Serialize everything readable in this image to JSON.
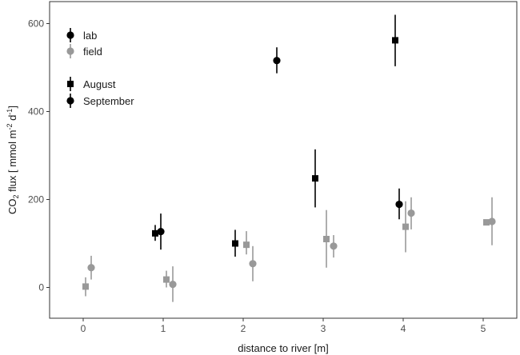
{
  "chart_data": {
    "type": "scatter",
    "xlabel": "distance to river [m]",
    "ylabel_parts": {
      "a": "CO",
      "b": "2",
      "c": " flux [ mmol m",
      "d": "-2",
      "e": " d",
      "f": "-1",
      "g": "]"
    },
    "xlim": [
      -0.42,
      5.42
    ],
    "ylim": [
      -70,
      650
    ],
    "x_ticks": [
      0,
      1,
      2,
      3,
      4,
      5
    ],
    "y_ticks": [
      0,
      200,
      400,
      600
    ],
    "grid": false,
    "legend_position": "top-left",
    "legend": {
      "color_entries": [
        {
          "label": "lab",
          "color": "#000000"
        },
        {
          "label": "field",
          "color": "#999999"
        }
      ],
      "shape_entries": [
        {
          "label": "August",
          "shape": "square"
        },
        {
          "label": "September",
          "shape": "circle"
        }
      ]
    },
    "series": [
      {
        "source": "lab",
        "month": "August",
        "shape": "square",
        "color": "#000000",
        "points": [
          {
            "x": 0.9,
            "y": 123,
            "low": 106,
            "high": 142
          },
          {
            "x": 1.9,
            "y": 100,
            "low": 70,
            "high": 131
          },
          {
            "x": 2.9,
            "y": 248,
            "low": 182,
            "high": 314
          },
          {
            "x": 3.9,
            "y": 562,
            "low": 503,
            "high": 620
          }
        ]
      },
      {
        "source": "lab",
        "month": "September",
        "shape": "circle",
        "color": "#000000",
        "points": [
          {
            "x": 0.97,
            "y": 127,
            "low": 86,
            "high": 168
          },
          {
            "x": 2.42,
            "y": 516,
            "low": 487,
            "high": 546
          },
          {
            "x": 3.95,
            "y": 189,
            "low": 155,
            "high": 225
          }
        ]
      },
      {
        "source": "field",
        "month": "August",
        "shape": "square",
        "color": "#999999",
        "points": [
          {
            "x": 0.03,
            "y": 2,
            "low": -20,
            "high": 23
          },
          {
            "x": 1.04,
            "y": 18,
            "low": 0,
            "high": 38
          },
          {
            "x": 2.04,
            "y": 97,
            "low": 75,
            "high": 128
          },
          {
            "x": 3.04,
            "y": 110,
            "low": 45,
            "high": 176
          },
          {
            "x": 4.03,
            "y": 138,
            "low": 80,
            "high": 196
          },
          {
            "x": 5.04,
            "y": 148,
            "low": 148,
            "high": 148
          }
        ]
      },
      {
        "source": "field",
        "month": "September",
        "shape": "circle",
        "color": "#999999",
        "points": [
          {
            "x": 0.1,
            "y": 45,
            "low": 18,
            "high": 72
          },
          {
            "x": 1.12,
            "y": 7,
            "low": -33,
            "high": 48
          },
          {
            "x": 2.12,
            "y": 54,
            "low": 14,
            "high": 94
          },
          {
            "x": 3.13,
            "y": 94,
            "low": 68,
            "high": 119
          },
          {
            "x": 4.1,
            "y": 169,
            "low": 132,
            "high": 205
          },
          {
            "x": 5.11,
            "y": 150,
            "low": 96,
            "high": 205
          }
        ]
      }
    ]
  }
}
